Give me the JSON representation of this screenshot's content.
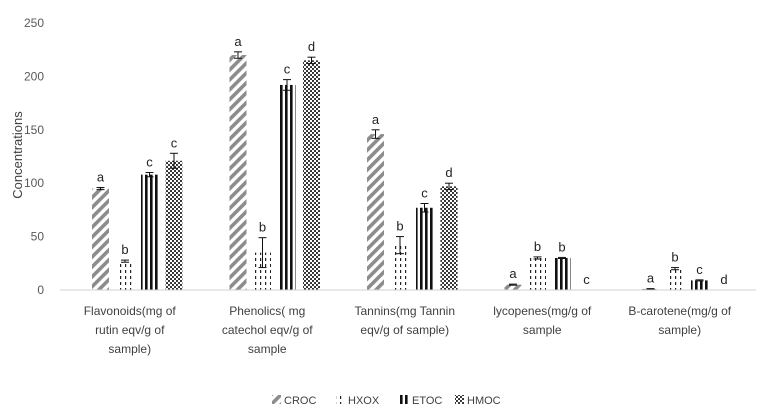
{
  "chart_data": {
    "type": "bar",
    "title": "",
    "xlabel": "",
    "ylabel": "Concentrations",
    "ylim": [
      0,
      250
    ],
    "yticks": [
      0,
      50,
      100,
      150,
      200,
      250
    ],
    "grid": false,
    "legend_position": "bottom",
    "categories": [
      [
        "Flavonoids(mg of",
        "rutin eqv/g of",
        "sample)"
      ],
      [
        "Phenolics( mg",
        "catechol eqv/g of",
        "sample"
      ],
      [
        "Tannins(mg Tannin",
        "eqv/g of sample)"
      ],
      [
        "lycopenes(mg/g of",
        "sample"
      ],
      [
        "B-carotene(mg/g of",
        "sample)"
      ]
    ],
    "series": [
      {
        "name": "CROC",
        "pattern": "diagonal",
        "values": [
          95,
          220,
          146,
          5,
          1
        ],
        "errors": [
          1,
          3,
          4,
          0.5,
          0.3
        ],
        "labels": [
          "a",
          "a",
          "a",
          "a",
          "a"
        ]
      },
      {
        "name": "HXOX",
        "pattern": "dashed",
        "values": [
          27,
          35,
          42,
          30,
          20
        ],
        "errors": [
          1,
          14,
          8,
          1,
          1
        ],
        "labels": [
          "b",
          "b",
          "b",
          "b",
          "b"
        ]
      },
      {
        "name": "ETOC",
        "pattern": "vertical",
        "values": [
          108,
          192,
          77,
          30,
          9
        ],
        "errors": [
          2,
          5,
          4,
          0.5,
          0.5
        ],
        "labels": [
          "c",
          "c",
          "c",
          "b",
          "c"
        ]
      },
      {
        "name": "HMOC",
        "pattern": "dots",
        "values": [
          121,
          215,
          97,
          0,
          0
        ],
        "errors": [
          7,
          3,
          3,
          0,
          0
        ],
        "labels": [
          "c",
          "d",
          "d",
          "c",
          "d"
        ]
      }
    ],
    "colors": {
      "ink": "#111111",
      "hatch_grey": "#8c8c8c",
      "axis": "#d0d0d0"
    }
  }
}
